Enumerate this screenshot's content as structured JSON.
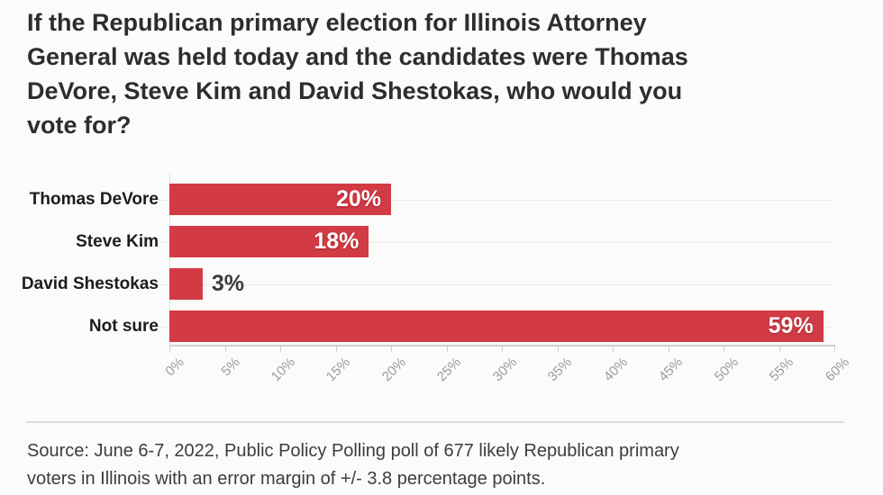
{
  "title": "If the Republican primary election for Illinois Attorney\nGeneral was held today and the candidates were Thomas\nDeVore, Steve Kim and David Shestokas, who would you\nvote for?",
  "source_note": "Source: June 6-7, 2022, Public Policy Polling poll of 677 likely Republican primary\nvoters in Illinois with an error margin of +/- 3.8 percentage points.",
  "colors": {
    "bar": "#d23a44",
    "title_text": "#2d2d2d",
    "category_text": "#1c1c1c",
    "value_inside_text": "#ffffff",
    "value_outside_text": "#3a3a3a",
    "axis_tick_text": "#9b9b9b",
    "gridline": "#ececec",
    "axis_line": "#cfcfcf",
    "background": "#fbfbfb",
    "divider": "#dddddd"
  },
  "chart_data": {
    "type": "bar",
    "orientation": "horizontal",
    "title": "If the Republican primary election for Illinois Attorney General was held today and the candidates were Thomas DeVore, Steve Kim and David Shestokas, who would you vote for?",
    "categories": [
      "Thomas DeVore",
      "Steve Kim",
      "David Shestokas",
      "Not sure"
    ],
    "values": [
      20,
      18,
      3,
      59
    ],
    "value_labels": [
      "20%",
      "18%",
      "3%",
      "59%"
    ],
    "xlabel": "",
    "ylabel": "",
    "xlim": [
      0,
      60
    ],
    "x_tick_step": 5,
    "x_ticks": [
      "0%",
      "5%",
      "10%",
      "15%",
      "20%",
      "25%",
      "30%",
      "35%",
      "40%",
      "45%",
      "50%",
      "55%",
      "60%"
    ],
    "grid": true,
    "legend": false
  }
}
